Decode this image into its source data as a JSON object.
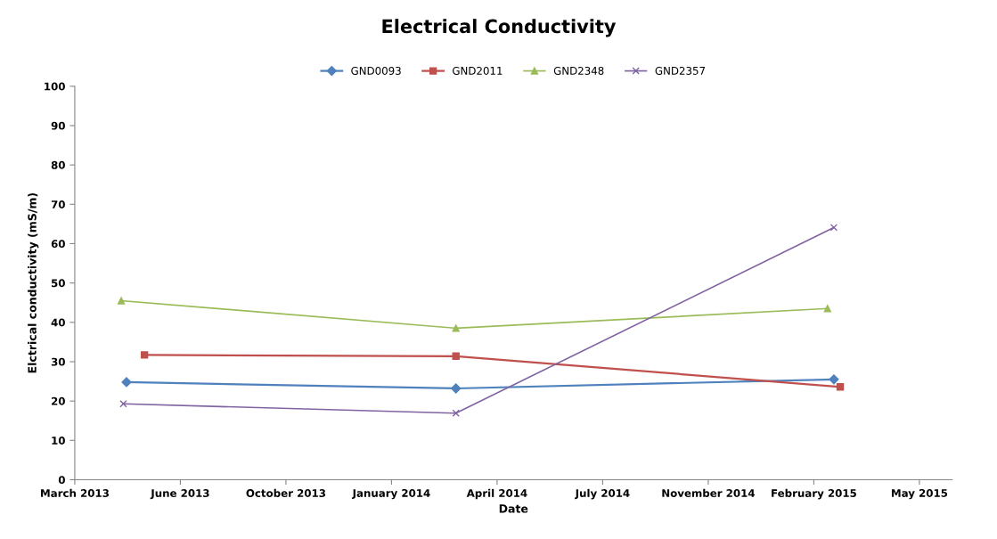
{
  "chart_data": {
    "type": "line",
    "title": "Electrical Conductivity",
    "xlabel": "Date",
    "ylabel": "Elctrical conductivity (mS/m)",
    "series": [
      {
        "name": "GND0093",
        "color": "#4f81bd",
        "marker": "diamond",
        "x": [
          "2013-05-04",
          "2014-03-12",
          "2015-03-05"
        ],
        "values": [
          24.8,
          23.2,
          25.5
        ]
      },
      {
        "name": "GND2011",
        "color": "#c0504d",
        "marker": "square",
        "x": [
          "2013-05-21",
          "2014-03-12",
          "2015-03-11"
        ],
        "values": [
          31.7,
          31.4,
          23.6
        ]
      },
      {
        "name": "GND2348",
        "color": "#9bbb59",
        "marker": "triangle",
        "x": [
          "2013-04-29",
          "2014-03-12",
          "2015-02-27"
        ],
        "values": [
          45.5,
          38.5,
          43.5
        ]
      },
      {
        "name": "GND2357",
        "color": "#8064a2",
        "marker": "cross",
        "x": [
          "2013-05-01",
          "2014-03-12",
          "2015-03-05"
        ],
        "values": [
          19.3,
          16.9,
          64.1
        ]
      }
    ],
    "xlim": [
      "2013-03-16",
      "2015-06-25"
    ],
    "xticks": [
      {
        "value": "2013-03-16",
        "label": "March 2013"
      },
      {
        "value": "2013-06-24",
        "label": "June 2013"
      },
      {
        "value": "2013-10-02",
        "label": "October 2013"
      },
      {
        "value": "2014-01-10",
        "label": "January 2014"
      },
      {
        "value": "2014-04-20",
        "label": "April 2014"
      },
      {
        "value": "2014-07-29",
        "label": "July 2014"
      },
      {
        "value": "2014-11-06",
        "label": "November 2014"
      },
      {
        "value": "2015-02-14",
        "label": "February 2015"
      },
      {
        "value": "2015-05-25",
        "label": "May 2015"
      }
    ],
    "ylim": [
      0,
      100
    ],
    "yticks": [
      0,
      10,
      20,
      30,
      40,
      50,
      60,
      70,
      80,
      90,
      100
    ],
    "grid": false,
    "legend": "top",
    "line_style": "solid"
  }
}
